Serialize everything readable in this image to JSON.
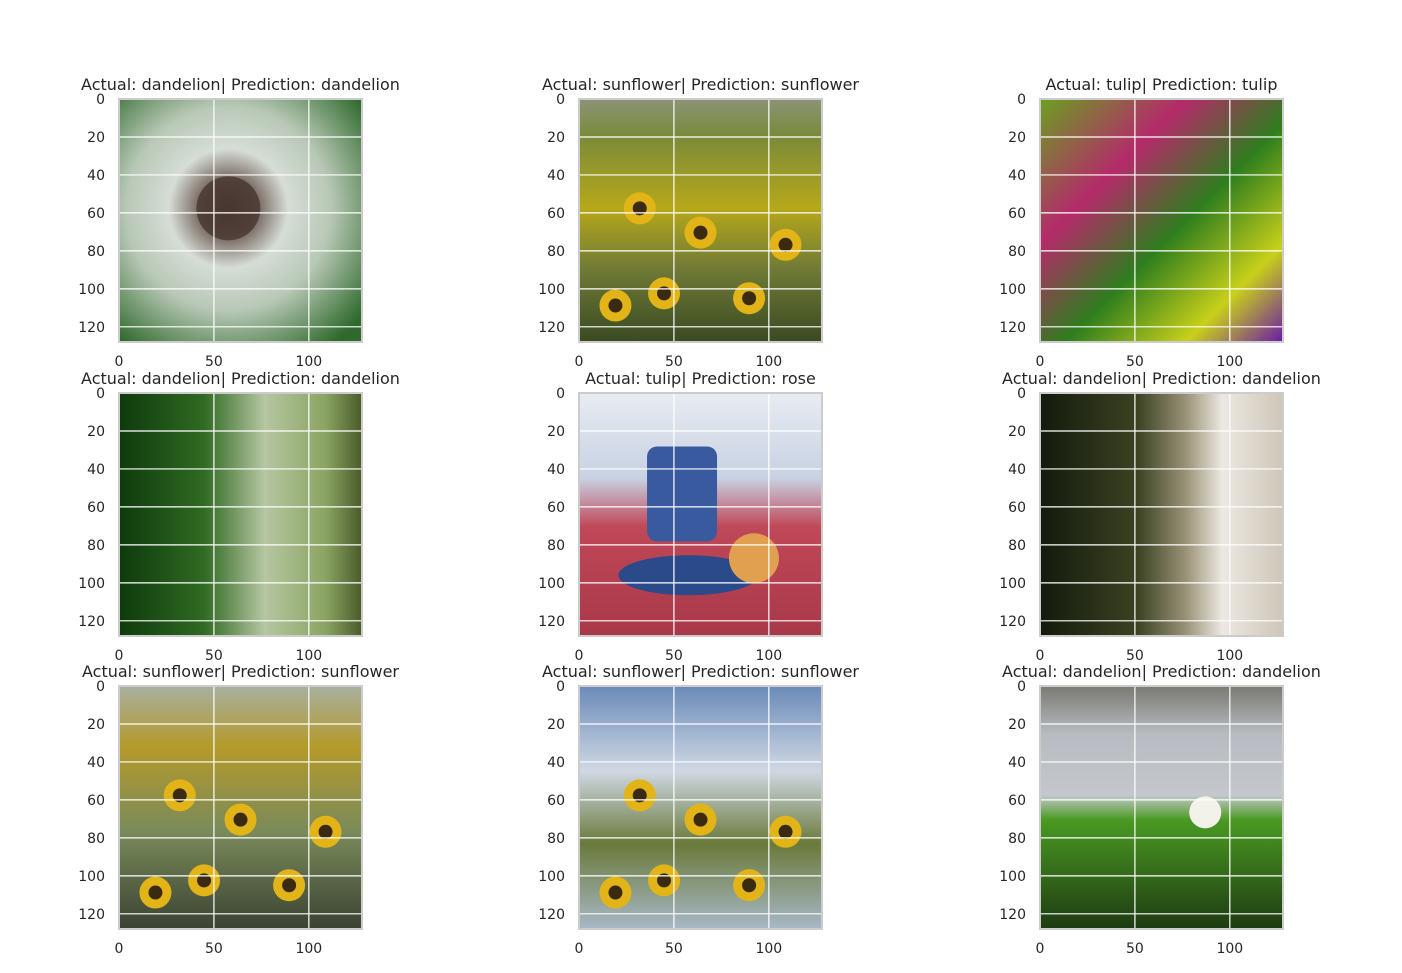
{
  "chart_data": {
    "type": "image_grid",
    "rows": 3,
    "cols": 3,
    "xticks": [
      0,
      50,
      100
    ],
    "yticks": [
      0,
      20,
      40,
      60,
      80,
      100,
      120
    ],
    "xlim": [
      0,
      128
    ],
    "ylim": [
      128,
      0
    ],
    "grid": true,
    "panels": [
      {
        "title": "Actual: dandelion| Prediction: dandelion",
        "actual": "dandelion",
        "prediction": "dandelion",
        "scene": "dandelion_closeup"
      },
      {
        "title": "Actual: sunflower| Prediction: sunflower",
        "actual": "sunflower",
        "prediction": "sunflower",
        "scene": "sunflower_field"
      },
      {
        "title": "Actual: tulip| Prediction: tulip",
        "actual": "tulip",
        "prediction": "tulip",
        "scene": "colorful_garden"
      },
      {
        "title": "Actual: dandelion| Prediction: dandelion",
        "actual": "dandelion",
        "prediction": "dandelion",
        "scene": "dandelion_side_green"
      },
      {
        "title": "Actual: tulip| Prediction: rose",
        "actual": "tulip",
        "prediction": "rose",
        "scene": "teacup"
      },
      {
        "title": "Actual: dandelion| Prediction: dandelion",
        "actual": "dandelion",
        "prediction": "dandelion",
        "scene": "dandelion_side_dark"
      },
      {
        "title": "Actual: sunflower| Prediction: sunflower",
        "actual": "sunflower",
        "prediction": "sunflower",
        "scene": "sunflower_closeup_field"
      },
      {
        "title": "Actual: sunflower| Prediction: sunflower",
        "actual": "sunflower",
        "prediction": "sunflower",
        "scene": "sunflowers_sky"
      },
      {
        "title": "Actual: dandelion| Prediction: dandelion",
        "actual": "dandelion",
        "prediction": "dandelion",
        "scene": "dandelion_grass"
      }
    ]
  },
  "colors": {
    "grid": "#ffffff",
    "frame": "#cccccc",
    "text": "#262626"
  }
}
